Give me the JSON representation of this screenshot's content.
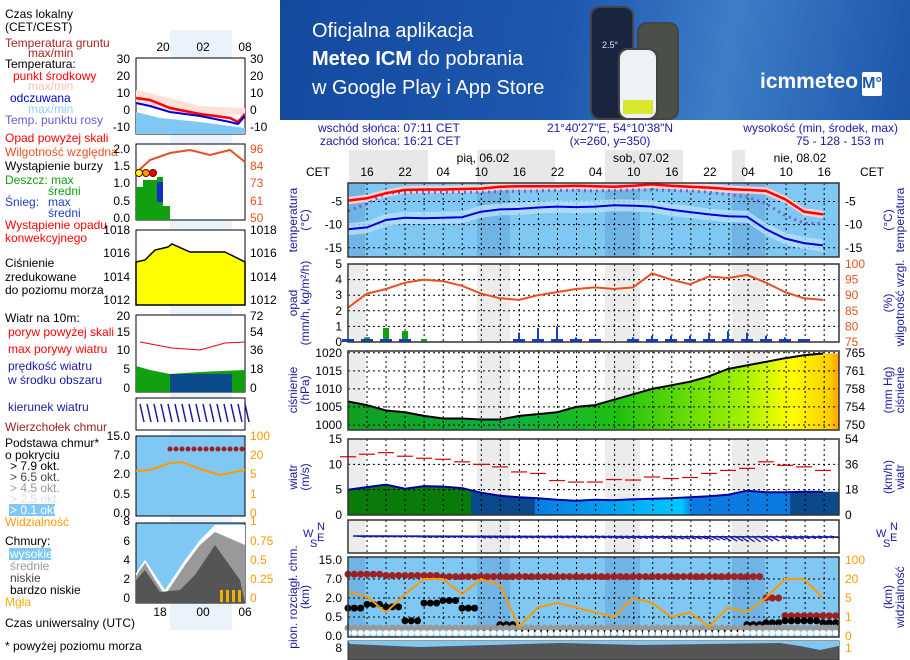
{
  "banner": {
    "line1": "Oficjalna aplikacja",
    "line2_bold": "Meteo ICM",
    "line2_rest": " do pobrania",
    "line3": "w Google Play i App Store",
    "logo": "icmmeteo",
    "logo_badge": "M°",
    "phone_temp": "2.5°"
  },
  "header": {
    "sunrise": "wschód słońca: 07:11 CET",
    "sunset": "zachód słońca: 16:21 CET",
    "coords": "21°40'27\"E, 54°10'38\"N",
    "grid": "(x=260,  y=350)",
    "elev_label": "wysokość (min, środek, max)",
    "elev_values": "75 - 128 - 153 m",
    "tz_left": "CET",
    "tz_right": "CET",
    "days": [
      "pią, 06.02",
      "sob, 07.02",
      "nie, 08.02"
    ],
    "hours": [
      "16",
      "22",
      "04",
      "10",
      "16",
      "22",
      "04",
      "10",
      "16",
      "22",
      "04",
      "10",
      "16"
    ]
  },
  "axis_titles": {
    "temp_left": [
      "temperatura",
      "(°C)"
    ],
    "temp_right": [
      "(°C)",
      "temperatura"
    ],
    "precip_left": [
      "opad",
      "(mm/h, kg/m²/h)"
    ],
    "precip_right": [
      "(%)",
      "wilgotność wzgl."
    ],
    "press_left": [
      "ciśnienie",
      "(hPa)"
    ],
    "press_right": [
      "(mm Hg)",
      "ciśnienie"
    ],
    "wind_left": [
      "wiatr",
      "(m/s)"
    ],
    "wind_right": [
      "(km/h)",
      "wiatr"
    ],
    "cloud_left": [
      "pion. rozciągł. chm.",
      "(km)"
    ],
    "cloud_right": [
      "(km)",
      "widzialność"
    ],
    "compass": {
      "n": "N",
      "w": "W",
      "e": "E",
      "s": "S"
    }
  },
  "legend": {
    "local_time": [
      "Czas lokalny",
      "(CET/CEST)"
    ],
    "local_ticks": [
      "20",
      "02",
      "08"
    ],
    "ground_temp": [
      "Temperatura gruntu",
      "max/min"
    ],
    "temperature": "Temperatura:",
    "mid_point": "punkt środkowy",
    "maxmin1": "max/min",
    "felt": "odczuwana",
    "maxmin2": "max/min",
    "dew_point": "Temp. punktu rosy",
    "temp_ticks": [
      "30",
      "20",
      "10",
      "0",
      "-10"
    ],
    "precip_over": "Opad powyżej skali",
    "humidity": "Wilgotność względna",
    "storm": "Wystąpienie burzy",
    "rain_max": "Deszcz: max",
    "rain_mean": "średni",
    "snow": "Śnieg:",
    "snow_max": "max",
    "snow_mean": "średni",
    "convective": [
      "Wystąpienie opadu",
      "konwekcyjnego"
    ],
    "precip_ticks": [
      "2.0",
      "1.5",
      "1.0",
      "0.5",
      "0.0"
    ],
    "humidity_ticks": [
      "96",
      "84",
      "73",
      "61",
      "50"
    ],
    "pressure": [
      "Ciśnienie",
      "zredukowane",
      "do poziomu morza"
    ],
    "pressure_ticks": [
      "1018",
      "1016",
      "1014",
      "1012"
    ],
    "wind": "Wiatr na 10m:",
    "gust_over": "poryw powyżej skali",
    "gust_max": "max porywy wiatru",
    "wind_speed": [
      "prędkość wiatru",
      "w środku obszaru"
    ],
    "wind_ticks": [
      "20",
      "15",
      "10",
      "5",
      "0"
    ],
    "wind_kmh_ticks": [
      "72",
      "54",
      "36",
      "18",
      "0"
    ],
    "wind_dir": "kierunek wiatru",
    "cloud_top": "Wierzchołek chmur",
    "cloud_base": [
      "Podstawa chmur*",
      "o pokryciu"
    ],
    "okt": [
      "> 7.9 okt.",
      "> 6.5 okt.",
      "> 4.5 okt.",
      "> 2.5 okt.",
      "> 0.1 okt."
    ],
    "cloud_ticks": [
      "15.0",
      "7.0",
      "2.0",
      "0.5",
      "0.0"
    ],
    "vis_ticks": [
      "100",
      "20",
      "5",
      "1",
      "0"
    ],
    "visibility": "Widzialność",
    "clouds": "Chmury:",
    "cloud_types": [
      "wysokie",
      "średnie",
      "niskie",
      "bardzo niskie"
    ],
    "fog": "Mgła",
    "cl_ticks": [
      "8",
      "6",
      "4",
      "2",
      "0"
    ],
    "fog_ticks": [
      "1",
      "0.75",
      "0.5",
      "0.25",
      "0"
    ],
    "utc_ticks": [
      "18",
      "00",
      "06"
    ],
    "utc": "Czas uniwersalny (UTC)",
    "footnote": "* powyżej poziomu morza"
  },
  "colors": {
    "temp": "#ff0000",
    "felt": "#0000e0",
    "dew": "#7060d0",
    "humidity": "#e85020",
    "rain": "#10a010",
    "snow": "#1040d0",
    "pressure_fill": "#ffff00",
    "visibility": "#ff9900",
    "cloud_top": "#a02020",
    "gust": "#e00000",
    "wind": "#0000a0"
  },
  "chart_data": {
    "type": "line",
    "times": [
      "05.02 13:00",
      "05.02 16:00",
      "05.02 19:00",
      "05.02 22:00",
      "06.02 01:00",
      "06.02 04:00",
      "06.02 07:00",
      "06.02 10:00",
      "06.02 13:00",
      "06.02 16:00",
      "06.02 19:00",
      "06.02 22:00",
      "07.02 01:00",
      "07.02 04:00",
      "07.02 07:00",
      "07.02 10:00",
      "07.02 13:00",
      "07.02 16:00",
      "07.02 19:00",
      "07.02 22:00",
      "08.02 01:00",
      "08.02 04:00",
      "08.02 07:00",
      "08.02 10:00",
      "08.02 13:00",
      "08.02 16:00"
    ],
    "temperature": {
      "ylim": [
        -17,
        -1
      ],
      "ticks": [
        "-5",
        "-10",
        "-15"
      ],
      "mid": [
        -4.8,
        -4.3,
        -3.2,
        -2.5,
        -2.4,
        -2.4,
        -2.3,
        -2.2,
        -1.8,
        -1.7,
        -1.7,
        -1.7,
        -1.6,
        -1.7,
        -1.8,
        -1.6,
        -1.3,
        -1.6,
        -1.8,
        -2.0,
        -2.3,
        -2.5,
        -2.7,
        -4.5,
        -7.2,
        -7.8
      ],
      "felt": [
        -11,
        -10.6,
        -9,
        -8.5,
        -8.6,
        -8.5,
        -8.4,
        -7.2,
        -6.7,
        -6.6,
        -6.3,
        -6.1,
        -6.2,
        -6.1,
        -5.8,
        -5.9,
        -6.1,
        -6.8,
        -7.3,
        -7.8,
        -8.2,
        -8.3,
        -11,
        -13,
        -14,
        -14.5
      ],
      "dew": [
        -7,
        -5.5,
        -3.2,
        -3,
        -3,
        -3,
        -3,
        -3,
        -2.8,
        -2.8,
        -2.7,
        -2.6,
        -2.6,
        -2.7,
        -2.6,
        -2.5,
        -2.5,
        -2.6,
        -2.7,
        -3,
        -3.5,
        -4,
        -5.5,
        -8,
        -9.7,
        -9.8
      ]
    },
    "precipitation": {
      "ylim": [
        0,
        5
      ],
      "ticks": [
        "5",
        "4",
        "3",
        "2",
        "1",
        "0"
      ],
      "rain": [
        0.05,
        0.3,
        0.9,
        0.7,
        0.2,
        0.05,
        0,
        0,
        0,
        0,
        0,
        0,
        0,
        0,
        0,
        0,
        0,
        0,
        0,
        0,
        0,
        0,
        0,
        0,
        0,
        0
      ],
      "snow": [
        0.1,
        0.2,
        0.1,
        0.1,
        0,
        0,
        0,
        0,
        0,
        0.6,
        0.9,
        1.0,
        0.3,
        0.1,
        0,
        0.3,
        0.4,
        0.4,
        0.4,
        0.6,
        0.7,
        0.6,
        0.4,
        0.3,
        0.1,
        0
      ]
    },
    "humidity": {
      "ylim": [
        75,
        100
      ],
      "ticks": [
        "100",
        "95",
        "90",
        "85",
        "80",
        "75"
      ],
      "values": [
        86,
        90.5,
        92,
        94,
        95,
        94.5,
        93,
        90.5,
        89,
        88.5,
        90,
        91,
        92,
        92.5,
        92,
        92.5,
        97,
        95,
        93.5,
        96,
        95.5,
        96.5,
        94,
        91,
        89,
        88.5
      ]
    },
    "pressure": {
      "ylim": [
        998.6,
        1020.5
      ],
      "ticks": [
        "1020",
        "1015",
        "1010",
        "1005",
        "1000"
      ],
      "mmhg_ticks": [
        "765",
        "761",
        "758",
        "754",
        "750"
      ],
      "values": [
        1006.5,
        1005.5,
        1004,
        1003.5,
        1002.5,
        1001.8,
        1001.8,
        1001.5,
        1001.5,
        1002.5,
        1003,
        1003.5,
        1005,
        1005.5,
        1007,
        1008.5,
        1010,
        1011,
        1012,
        1013.5,
        1015.5,
        1016.5,
        1017.5,
        1018.5,
        1019.3,
        1019.8
      ]
    },
    "wind": {
      "ylim": [
        0,
        15
      ],
      "ticks": [
        "15",
        "10",
        "5",
        "0"
      ],
      "kmh_ticks": [
        "54",
        "36",
        "18",
        "0"
      ],
      "speed": [
        5,
        5.5,
        6,
        5.2,
        5.7,
        5.6,
        5.3,
        4.4,
        3.8,
        3.5,
        3.3,
        3,
        2.8,
        3,
        2.9,
        3.1,
        3.2,
        3.3,
        3.5,
        3.7,
        4,
        4.8,
        4.5,
        4.5,
        4.6,
        4.6
      ],
      "gust": [
        11.5,
        12,
        12.3,
        11.6,
        11.2,
        11,
        10.5,
        10,
        9.5,
        8.5,
        8.2,
        6.8,
        6.5,
        6.5,
        7,
        6.9,
        7.5,
        7.2,
        7.4,
        8.2,
        8.8,
        9.2,
        10.5,
        9.8,
        9.5,
        8.8
      ],
      "direction_deg": [
        80,
        80,
        80,
        80,
        85,
        85,
        85,
        90,
        90,
        90,
        90,
        90,
        90,
        90,
        95,
        95,
        95,
        100,
        100,
        110,
        120,
        130,
        120,
        100,
        95,
        90
      ]
    },
    "clouds": {
      "ticks": [
        "15.0",
        "7.0",
        "2.0",
        "0.5",
        "0.0"
      ],
      "vis_ticks": [
        "100",
        "20",
        "5",
        "1",
        "0"
      ],
      "cloud_top_km": [
        9,
        9,
        8.5,
        8.5,
        8.5,
        8,
        8,
        8,
        8,
        8,
        8,
        8,
        8,
        8,
        8,
        8,
        8,
        8,
        8,
        8,
        8,
        8,
        2,
        0.6,
        0.6,
        0.6
      ],
      "cloud_base_km": [
        1.2,
        1.5,
        1.3,
        0.4,
        1.6,
        1.8,
        1.2,
        0.2,
        0.3,
        0.15,
        0.12,
        0.15,
        0.1,
        0.1,
        0.12,
        0.1,
        0.1,
        0.1,
        0.1,
        0.12,
        0.15,
        0.3,
        0.35,
        0.4,
        0.4,
        0.35
      ],
      "visibility_km": [
        10,
        6,
        2,
        8,
        20,
        20,
        8,
        20,
        15,
        0.5,
        3,
        4,
        3,
        2,
        1,
        5,
        4,
        1,
        2,
        0.5,
        3,
        2,
        5,
        20,
        20,
        5
      ]
    }
  }
}
